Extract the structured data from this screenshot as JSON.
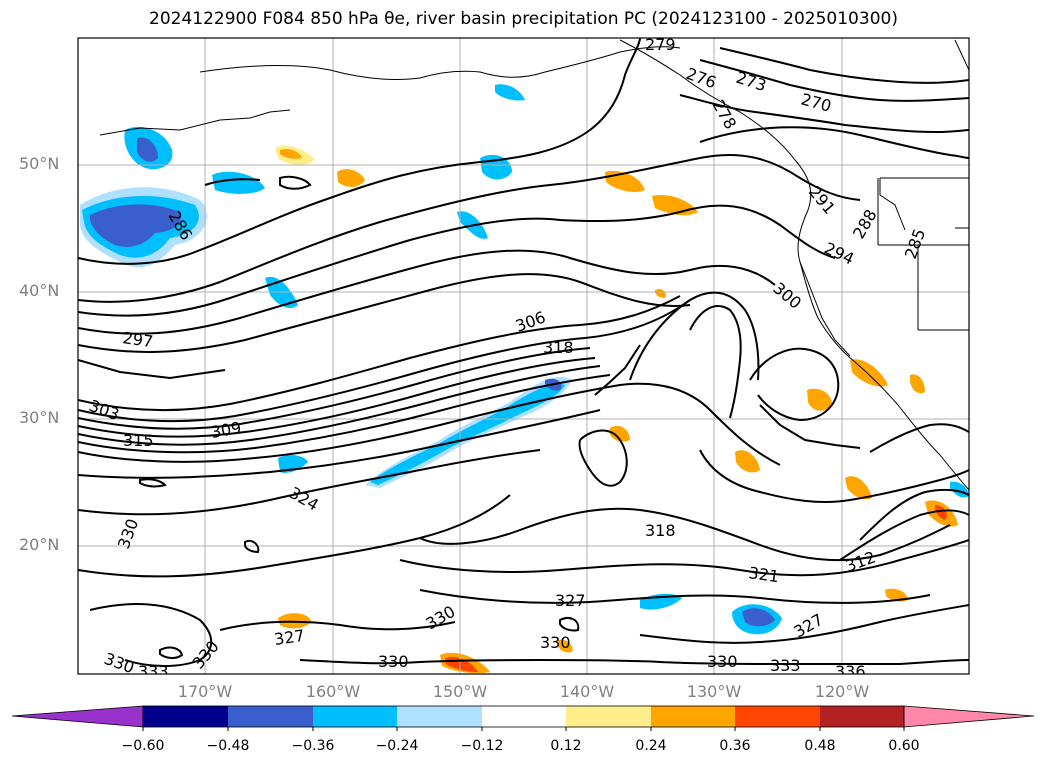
{
  "title": "2024122900 F084 850 hPa θe, river basin precipitation PC (2024123100 - 2025010300)",
  "map": {
    "latitude_labels": [
      "50°N",
      "40°N",
      "30°N",
      "20°N"
    ],
    "longitude_labels": [
      "170°W",
      "160°W",
      "150°W",
      "140°W",
      "130°W",
      "120°W"
    ],
    "contour_labels": [
      "279",
      "276",
      "273",
      "270",
      "278",
      "291",
      "294",
      "288",
      "285",
      "300",
      "286",
      "306",
      "318",
      "297",
      "303",
      "309",
      "315",
      "324",
      "330",
      "318",
      "321",
      "312",
      "327",
      "330",
      "327",
      "330",
      "327",
      "330",
      "330",
      "333",
      "336",
      "330",
      "333",
      "330"
    ],
    "grid": true
  },
  "colorbar": {
    "ticks": [
      "−0.60",
      "−0.48",
      "−0.36",
      "−0.24",
      "−0.12",
      "0.12",
      "0.24",
      "0.36",
      "0.48",
      "0.60"
    ],
    "colors": [
      "#9932cc",
      "#00008b",
      "#3a5fcd",
      "#00bfff",
      "#b0e0ff",
      "#ffffff",
      "#ffec8b",
      "#ffa500",
      "#ff4500",
      "#b22222",
      "#ff88aa"
    ]
  }
}
